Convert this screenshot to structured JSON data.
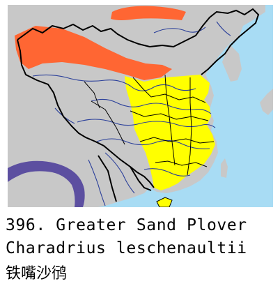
{
  "caption": {
    "number": "396.",
    "common_name": "Greater Sand Plover",
    "scientific_name": "Charadrius leschenaultii",
    "chinese_name": "铁嘴沙鸻"
  },
  "legend_colors": {
    "breeding_range": "#ff6633",
    "winter_range": "#ffff00",
    "resident_range": "#5c4fa0",
    "land": "#c8c8c8",
    "sea": "#a8dcf4",
    "rivers": "#2a3f9a",
    "borders": "#000000"
  }
}
